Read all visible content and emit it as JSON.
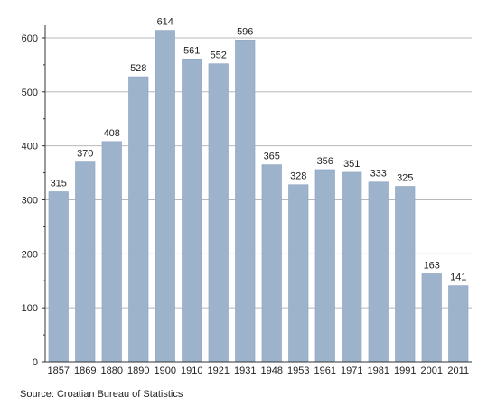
{
  "chart_data": {
    "type": "bar",
    "categories": [
      "1857",
      "1869",
      "1880",
      "1890",
      "1900",
      "1910",
      "1921",
      "1931",
      "1948",
      "1953",
      "1961",
      "1971",
      "1981",
      "1991",
      "2001",
      "2011"
    ],
    "values": [
      315,
      370,
      408,
      528,
      614,
      561,
      552,
      596,
      365,
      328,
      356,
      351,
      333,
      325,
      163,
      141
    ],
    "ylim": [
      0,
      620
    ],
    "yticks": [
      0,
      100,
      200,
      300,
      400,
      500,
      600
    ],
    "grid": true,
    "bar_color": "#9db3cc",
    "bar_stroke": "#8aa2bd",
    "grid_color": "#b8b8b8",
    "axis_color": "#333333"
  },
  "source": "Source: Croatian Bureau of Statistics"
}
